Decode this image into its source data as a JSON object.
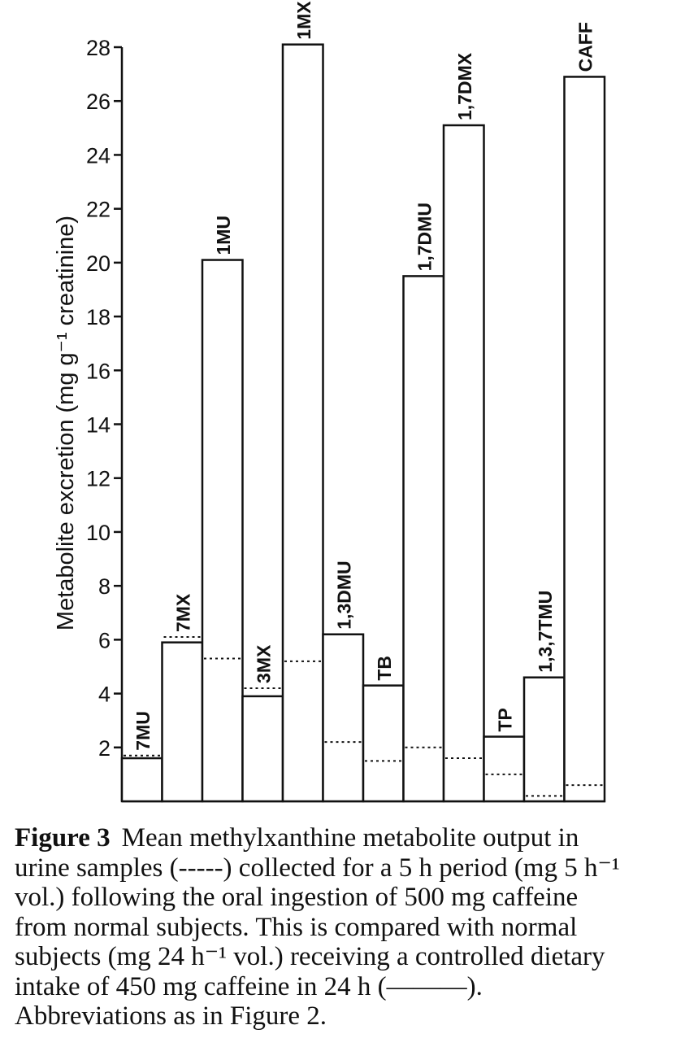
{
  "chart_data": {
    "type": "bar",
    "title": "",
    "xlabel": "",
    "ylabel": "Metabolite excretion (mg g⁻¹ creatinine)",
    "ylim": [
      0,
      28
    ],
    "yticks": [
      2,
      4,
      6,
      8,
      10,
      12,
      14,
      16,
      18,
      20,
      22,
      24,
      26,
      28
    ],
    "categories": [
      "7MU",
      "7MX",
      "1MU",
      "3MX",
      "1MX",
      "1,3DMU",
      "TB",
      "1,7DMU",
      "1,7DMX",
      "TP",
      "1,3,7TMU",
      "CAFF"
    ],
    "series": [
      {
        "name": "",
        "line_style": "solid",
        "values": [
          1.6,
          5.9,
          20.1,
          3.9,
          28.1,
          6.2,
          4.3,
          19.5,
          25.1,
          2.4,
          4.6,
          26.9
        ]
      },
      {
        "name": "",
        "line_style": "dotted",
        "values": [
          1.7,
          6.1,
          5.3,
          4.2,
          5.2,
          2.2,
          1.5,
          2.0,
          1.6,
          1.0,
          0.2,
          0.6
        ]
      }
    ],
    "grid": false,
    "colors": {
      "bar_fill": "#ffffff",
      "stroke": "#111111"
    }
  },
  "caption": {
    "label": "Figure 3",
    "lines": [
      "Mean methylxanthine metabolite output in",
      "urine samples (-----) collected for a 5 h period (mg 5 h⁻¹",
      "vol.) following the oral ingestion of 500 mg caffeine",
      "from normal subjects. This is compared with normal",
      "subjects (mg 24 h⁻¹ vol.) receiving a controlled dietary",
      "intake of 450 mg caffeine in 24 h (———).",
      "Abbreviations as in Figure 2."
    ]
  }
}
